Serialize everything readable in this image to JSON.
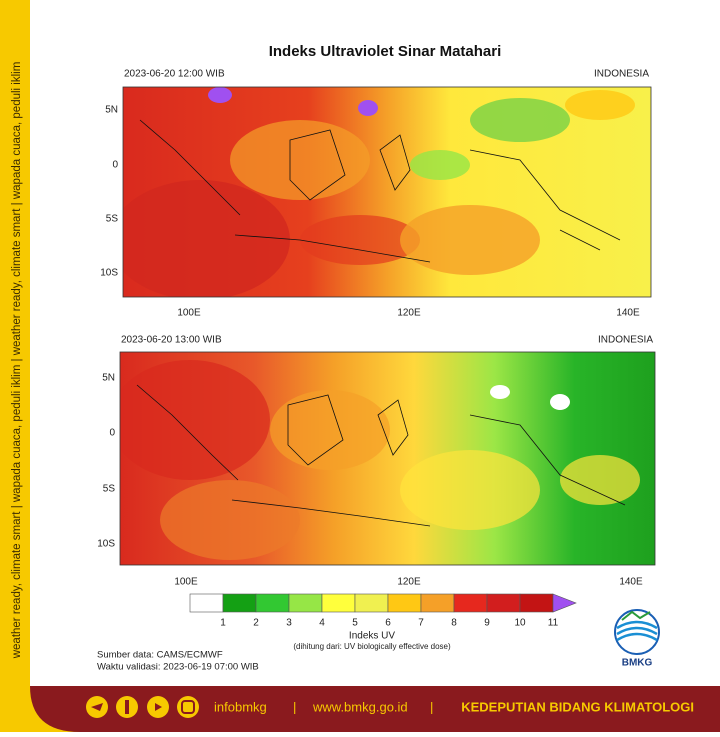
{
  "title": "Indeks Ultraviolet Sinar Matahari",
  "side_text": "weather ready, climate smart | wapada cuaca, peduli iklim | weather ready, climate smart | wapada cuaca, peduli iklim",
  "panels": [
    {
      "time": "2023-06-20  12:00 WIB",
      "region": "INDONESIA",
      "lat_labels": [
        "5N",
        "0",
        "5S",
        "10S"
      ],
      "lon_labels": [
        "100E",
        "120E",
        "140E"
      ]
    },
    {
      "time": "2023-06-20  13:00 WIB",
      "region": "INDONESIA",
      "lat_labels": [
        "5N",
        "0",
        "5S",
        "10S"
      ],
      "lon_labels": [
        "100E",
        "120E",
        "140E"
      ]
    }
  ],
  "colorbar": {
    "labels": [
      1,
      2,
      3,
      4,
      5,
      6,
      7,
      8,
      9,
      10,
      11
    ],
    "colors": [
      "#ffffff",
      "#14a014",
      "#32c832",
      "#96e646",
      "#ffff3c",
      "#f0f050",
      "#ffc814",
      "#f5a028",
      "#e6281e",
      "#d21e1e",
      "#c31414",
      "#a050f0"
    ],
    "title": "Indeks UV",
    "subtitle": "(dihitung dari: UV biologically effective dose)"
  },
  "source": "Sumber data: CAMS/ECMWF",
  "validity": "Waktu validasi: 2023-06-19 07:00 WIB",
  "logo": "BMKG",
  "footer": {
    "handle": "infobmkg",
    "sep1": "|",
    "website": "www.bmkg.go.id",
    "sep2": "|",
    "department": "KEDEPUTIAN BIDANG KLIMATOLOGI"
  }
}
